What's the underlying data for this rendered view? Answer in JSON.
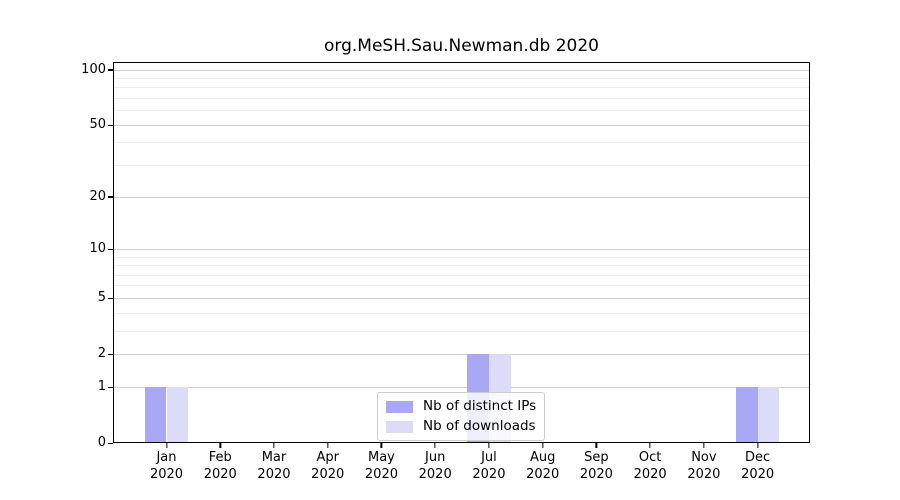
{
  "chart_data": {
    "type": "bar",
    "title": "org.MeSH.Sau.Newman.db 2020",
    "categories": [
      {
        "month": "Jan",
        "year": "2020"
      },
      {
        "month": "Feb",
        "year": "2020"
      },
      {
        "month": "Mar",
        "year": "2020"
      },
      {
        "month": "Apr",
        "year": "2020"
      },
      {
        "month": "May",
        "year": "2020"
      },
      {
        "month": "Jun",
        "year": "2020"
      },
      {
        "month": "Jul",
        "year": "2020"
      },
      {
        "month": "Aug",
        "year": "2020"
      },
      {
        "month": "Sep",
        "year": "2020"
      },
      {
        "month": "Oct",
        "year": "2020"
      },
      {
        "month": "Nov",
        "year": "2020"
      },
      {
        "month": "Dec",
        "year": "2020"
      }
    ],
    "series": [
      {
        "name": "Nb of distinct IPs",
        "color": "#a8a8f5",
        "values": [
          1,
          0,
          0,
          0,
          0,
          0,
          2,
          0,
          0,
          0,
          0,
          1
        ]
      },
      {
        "name": "Nb of downloads",
        "color": "#dcdcf9",
        "values": [
          1,
          0,
          0,
          0,
          0,
          0,
          2,
          0,
          0,
          0,
          0,
          1
        ]
      }
    ],
    "xlabel": "",
    "ylabel": "",
    "y_axis": {
      "scale": "log1p",
      "max": 100,
      "ticks": [
        0,
        1,
        2,
        5,
        10,
        20,
        50,
        100
      ],
      "minor_gridlines": [
        3,
        4,
        6,
        7,
        8,
        9,
        30,
        40,
        60,
        70,
        80,
        90
      ]
    },
    "grid": {
      "major_color": "#cfcfcf",
      "minor_color": "#ededed",
      "visible": true
    },
    "legend": {
      "position": "bottom-center",
      "entries": [
        "Nb of distinct IPs",
        "Nb of downloads"
      ]
    }
  }
}
